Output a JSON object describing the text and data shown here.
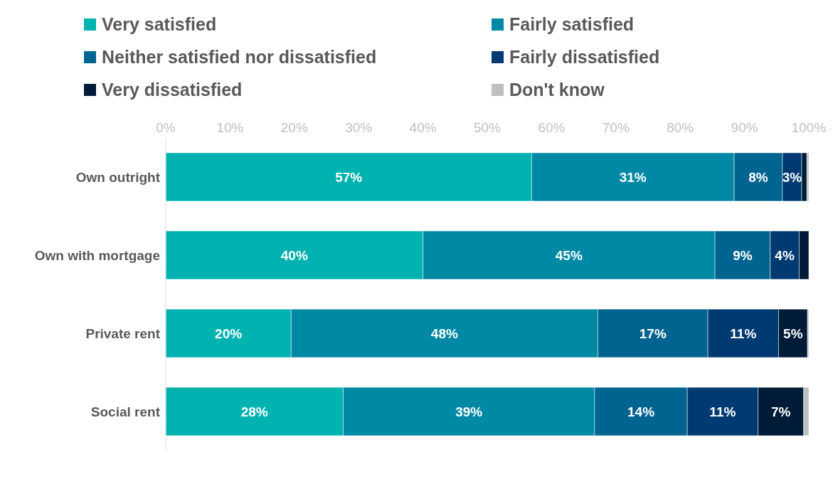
{
  "chart_data": {
    "type": "bar",
    "orientation": "horizontal",
    "stacked": true,
    "categories": [
      "Own outright",
      "Own with mortgage",
      "Private rent",
      "Social rent"
    ],
    "series": [
      {
        "name": "Very satisfied",
        "color": "#00b2b0",
        "values": [
          56.9,
          40.0,
          19.5,
          27.6
        ],
        "value_labels": [
          "57%",
          "40%",
          "20%",
          "28%"
        ]
      },
      {
        "name": "Fairly satisfied",
        "color": "#0089a5",
        "values": [
          31.5,
          45.4,
          47.7,
          39.1
        ],
        "value_labels": [
          "31%",
          "45%",
          "48%",
          "39%"
        ]
      },
      {
        "name": "Neither satisfied nor dissatisfied",
        "color": "#006490",
        "values": [
          7.5,
          8.6,
          17.1,
          14.4
        ],
        "value_labels": [
          "8%",
          "9%",
          "17%",
          "14%"
        ]
      },
      {
        "name": "Fairly dissatisfied",
        "color": "#003a72",
        "values": [
          3.0,
          4.5,
          11.0,
          11.0
        ],
        "value_labels": [
          "3%",
          "4%",
          "11%",
          "11%"
        ]
      },
      {
        "name": "Very dissatisfied",
        "color": "#001b38",
        "values": [
          0.8,
          1.7,
          4.5,
          7.1
        ],
        "value_labels": [
          null,
          null,
          "5%",
          "7%"
        ]
      },
      {
        "name": "Don't know",
        "color": "#bfbfbf",
        "values": [
          0.3,
          0,
          0.2,
          0.8
        ],
        "value_labels": [
          null,
          null,
          null,
          null
        ]
      }
    ],
    "xlim": [
      0,
      100
    ],
    "xticks": [
      {
        "value": 0,
        "label": "0%"
      },
      {
        "value": 10,
        "label": "10%"
      },
      {
        "value": 20,
        "label": "20%"
      },
      {
        "value": 30,
        "label": "30%"
      },
      {
        "value": 40,
        "label": "40%"
      },
      {
        "value": 50,
        "label": "50%"
      },
      {
        "value": 60,
        "label": "60%"
      },
      {
        "value": 70,
        "label": "70%"
      },
      {
        "value": 80,
        "label": "80%"
      },
      {
        "value": 90,
        "label": "90%"
      },
      {
        "value": 100,
        "label": "100%"
      }
    ],
    "legend": "top"
  }
}
